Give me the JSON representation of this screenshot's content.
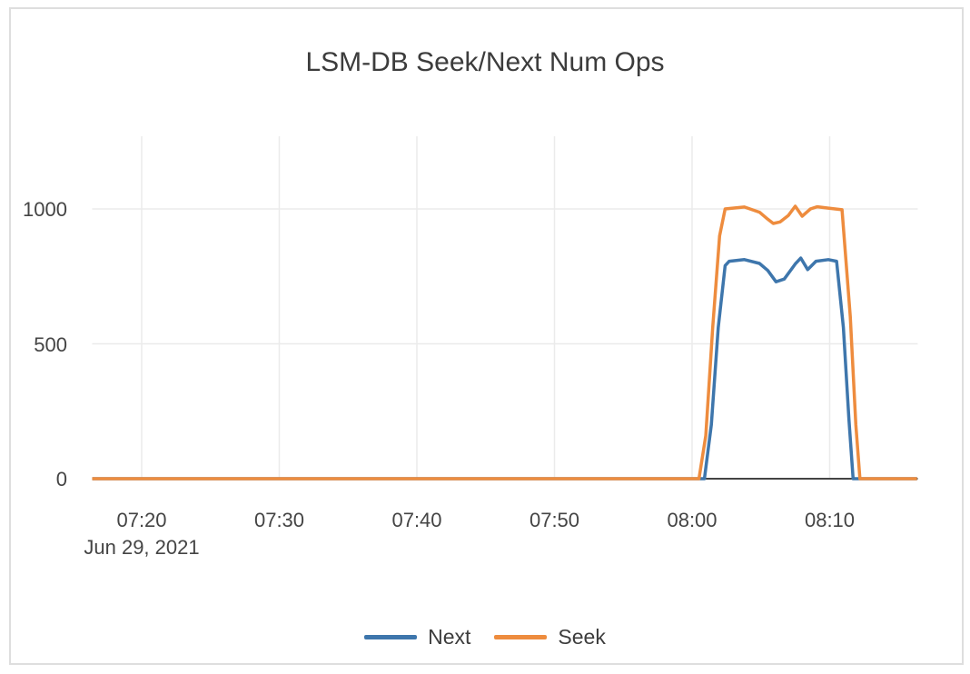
{
  "chart_data": {
    "type": "line",
    "title": "LSM-DB Seek/Next Num Ops",
    "x_date_label": "Jun 29, 2021",
    "x_ticks": [
      {
        "label": "07:20",
        "t": 20
      },
      {
        "label": "07:30",
        "t": 30
      },
      {
        "label": "07:40",
        "t": 40
      },
      {
        "label": "07:50",
        "t": 50
      },
      {
        "label": "08:00",
        "t": 60
      },
      {
        "label": "08:10",
        "t": 70
      }
    ],
    "x_range_minutes_after_0700": [
      16.4,
      76.4
    ],
    "y_ticks": [
      {
        "label": "0",
        "v": 0
      },
      {
        "label": "500",
        "v": 500
      },
      {
        "label": "1000",
        "v": 1000
      }
    ],
    "y_range": [
      0,
      1270
    ],
    "grid": true,
    "legend_position": "bottom-center",
    "colors": {
      "next": "#3e76ac",
      "seek": "#ee8c3e",
      "zero_line": "#444444",
      "grid_line": "#ebebeb",
      "tick_text": "#444444",
      "title_text": "#3c3c3c",
      "card_border": "#dedede"
    },
    "legend": [
      {
        "label": "Next",
        "color": "#3e76ac"
      },
      {
        "label": "Seek",
        "color": "#ee8c3e"
      }
    ],
    "series": [
      {
        "name": "Next",
        "color": "#3e76ac",
        "points": [
          [
            16.4,
            0
          ],
          [
            30,
            0
          ],
          [
            45,
            0
          ],
          [
            55,
            0
          ],
          [
            60.9,
            0
          ],
          [
            61.4,
            200
          ],
          [
            61.9,
            560
          ],
          [
            62.4,
            790
          ],
          [
            62.7,
            806
          ],
          [
            63.8,
            812
          ],
          [
            64.9,
            798
          ],
          [
            65.5,
            772
          ],
          [
            66.1,
            730
          ],
          [
            66.7,
            740
          ],
          [
            67.5,
            796
          ],
          [
            67.9,
            818
          ],
          [
            68.4,
            775
          ],
          [
            69.0,
            806
          ],
          [
            69.9,
            812
          ],
          [
            70.5,
            806
          ],
          [
            71.0,
            560
          ],
          [
            71.4,
            220
          ],
          [
            71.7,
            0
          ],
          [
            76.35,
            0
          ]
        ]
      },
      {
        "name": "Seek",
        "color": "#ee8c3e",
        "points": [
          [
            16.4,
            0
          ],
          [
            30,
            0
          ],
          [
            45,
            0
          ],
          [
            55,
            0
          ],
          [
            60.5,
            0
          ],
          [
            61.0,
            160
          ],
          [
            61.5,
            560
          ],
          [
            62.0,
            900
          ],
          [
            62.4,
            1000
          ],
          [
            63.8,
            1007
          ],
          [
            64.9,
            988
          ],
          [
            65.5,
            962
          ],
          [
            65.9,
            946
          ],
          [
            66.4,
            952
          ],
          [
            67.0,
            976
          ],
          [
            67.5,
            1010
          ],
          [
            68.0,
            973
          ],
          [
            68.6,
            1000
          ],
          [
            69.1,
            1008
          ],
          [
            69.9,
            1003
          ],
          [
            70.9,
            997
          ],
          [
            71.5,
            600
          ],
          [
            71.9,
            200
          ],
          [
            72.2,
            0
          ],
          [
            76.35,
            0
          ]
        ]
      }
    ]
  }
}
